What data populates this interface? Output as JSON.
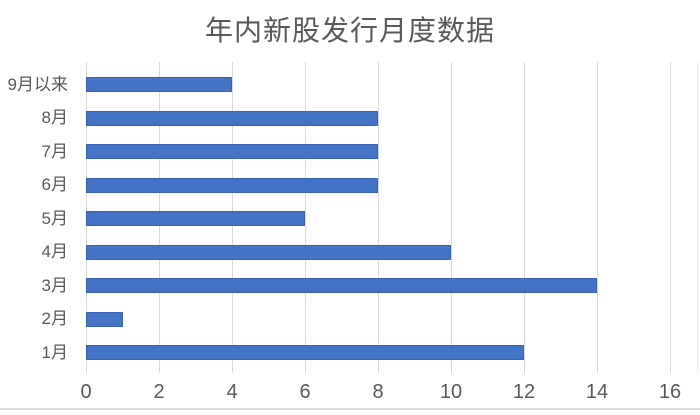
{
  "chart_data": {
    "type": "bar",
    "orientation": "horizontal",
    "title": "年内新股发行月度数据",
    "categories": [
      "9月以来",
      "8月",
      "7月",
      "6月",
      "5月",
      "4月",
      "3月",
      "2月",
      "1月"
    ],
    "values": [
      4,
      8,
      8,
      8,
      6,
      10,
      14,
      1,
      12
    ],
    "xlabel": "",
    "ylabel": "",
    "xlim": [
      0,
      16
    ],
    "x_ticks": [
      0,
      2,
      4,
      6,
      8,
      10,
      12,
      14,
      16
    ],
    "grid": "vertical-only",
    "legend": "none",
    "colors": {
      "bar_fill": "#4472C4",
      "bar_border": "#3A62AE",
      "gridline": "#D9D9D9",
      "title_text": "#595959",
      "axis_text": "#595959",
      "chart_border": "#D9D9D9"
    }
  }
}
